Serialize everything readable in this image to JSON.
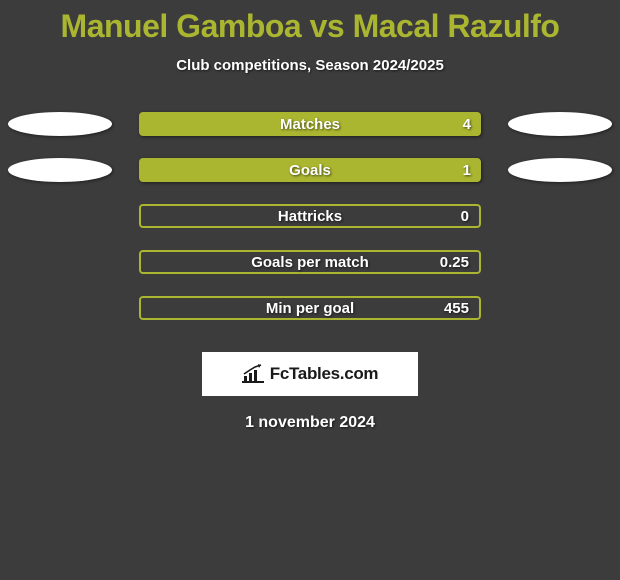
{
  "title": "Manuel Gamboa vs Macal Razulfo",
  "subtitle": "Club competitions, Season 2024/2025",
  "colors": {
    "background": "#3c3c3c",
    "accent": "#aab530",
    "text": "#ffffff",
    "ellipse": "#ffffff"
  },
  "stats": [
    {
      "label": "Matches",
      "value": "4",
      "filled": true,
      "show_ellipses": true
    },
    {
      "label": "Goals",
      "value": "1",
      "filled": true,
      "show_ellipses": true
    },
    {
      "label": "Hattricks",
      "value": "0",
      "filled": false,
      "show_ellipses": false
    },
    {
      "label": "Goals per match",
      "value": "0.25",
      "filled": false,
      "show_ellipses": false
    },
    {
      "label": "Min per goal",
      "value": "455",
      "filled": false,
      "show_ellipses": false
    }
  ],
  "logo_text": "FcTables.com",
  "date": "1 november 2024"
}
